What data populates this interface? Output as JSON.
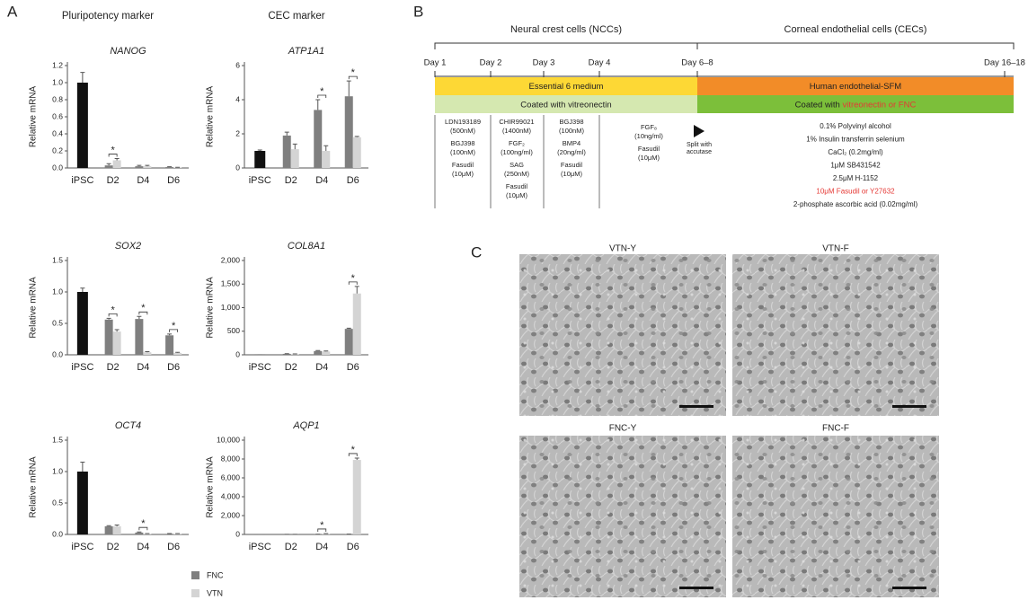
{
  "panel_labels": {
    "a": "A",
    "b": "B",
    "c": "C"
  },
  "column_headers": [
    "Pluripotency marker",
    "CEC marker"
  ],
  "legend": [
    {
      "name": "FNC",
      "color": "#7f7f7f"
    },
    {
      "name": "VTN",
      "color": "#d4d4d4"
    }
  ],
  "chart_data": [
    {
      "type": "bar",
      "title": "NANOG",
      "y_label": "Relative mRNA",
      "categories": [
        "iPSC",
        "D2",
        "D4",
        "D6"
      ],
      "reference_color": "#111111",
      "series": [
        {
          "values": [
            1.0,
            0.03,
            0.02,
            0.01
          ],
          "errors": [
            0.12,
            0.02,
            0.01,
            0.005
          ]
        },
        {
          "values": [
            null,
            0.09,
            0.02,
            0.005
          ],
          "errors": [
            null,
            0.02,
            0.01,
            0.003
          ]
        }
      ],
      "ylim": [
        0,
        1.2
      ],
      "yticks": [
        {
          "value": 0,
          "label": "0.0"
        },
        0.2,
        0.4,
        0.6,
        0.8,
        {
          "value": 1,
          "label": "1.0"
        },
        1.2
      ],
      "annotations": [
        {
          "x": "D2",
          "text": "*"
        }
      ]
    },
    {
      "type": "bar",
      "title": "ATP1A1",
      "y_label": "Relative mRNA",
      "categories": [
        "iPSC",
        "D2",
        "D4",
        "D6"
      ],
      "reference_color": "#111111",
      "series": [
        {
          "values": [
            1.0,
            1.9,
            3.4,
            4.2
          ],
          "errors": [
            0.05,
            0.2,
            0.6,
            0.9
          ]
        },
        {
          "values": [
            null,
            1.1,
            1.0,
            1.8
          ],
          "errors": [
            null,
            0.3,
            0.3,
            0.05
          ]
        }
      ],
      "ylim": [
        0,
        6
      ],
      "yticks": [
        0,
        2,
        4,
        6
      ],
      "annotations": [
        {
          "x": "D4",
          "text": "*"
        },
        {
          "x": "D6",
          "text": "*"
        }
      ]
    },
    {
      "type": "bar",
      "title": "SOX2",
      "y_label": "Relative mRNA",
      "categories": [
        "iPSC",
        "D2",
        "D4",
        "D6"
      ],
      "reference_color": "#111111",
      "series": [
        {
          "values": [
            1.0,
            0.56,
            0.57,
            0.31
          ],
          "errors": [
            0.06,
            0.02,
            0.04,
            0.02
          ]
        },
        {
          "values": [
            null,
            0.37,
            0.04,
            0.03
          ],
          "errors": [
            null,
            0.03,
            0.01,
            0.01
          ]
        }
      ],
      "ylim": [
        0,
        1.5
      ],
      "yticks": [
        {
          "value": 0,
          "label": "0.0"
        },
        0.5,
        {
          "value": 1,
          "label": "1.0"
        },
        1.5
      ],
      "annotations": [
        {
          "x": "D2",
          "text": "*"
        },
        {
          "x": "D4",
          "text": "*"
        },
        {
          "x": "D6",
          "text": "*"
        }
      ]
    },
    {
      "type": "bar",
      "title": "COL8A1",
      "y_label": "Relative mRNA",
      "categories": [
        "iPSC",
        "D2",
        "D4",
        "D6"
      ],
      "reference_color": "#111111",
      "series": [
        {
          "values": [
            1,
            20,
            80,
            550
          ],
          "errors": [
            0,
            5,
            10,
            15
          ]
        },
        {
          "values": [
            null,
            15,
            70,
            1300
          ],
          "errors": [
            null,
            5,
            10,
            150
          ]
        }
      ],
      "ylim": [
        0,
        2000
      ],
      "yticks": [
        0,
        500,
        {
          "value": 1000,
          "label": "1,000"
        },
        {
          "value": 1500,
          "label": "1,500"
        },
        {
          "value": 2000,
          "label": "2,000"
        }
      ],
      "annotations": [
        {
          "x": "D6",
          "text": "*"
        }
      ]
    },
    {
      "type": "bar",
      "title": "OCT4",
      "y_label": "Relative mRNA",
      "categories": [
        "iPSC",
        "D2",
        "D4",
        "D6"
      ],
      "reference_color": "#111111",
      "series": [
        {
          "values": [
            1.0,
            0.13,
            0.03,
            0.01
          ],
          "errors": [
            0.15,
            0.01,
            0.01,
            0.005
          ]
        },
        {
          "values": [
            null,
            0.13,
            0.01,
            0.01
          ],
          "errors": [
            null,
            0.02,
            0.005,
            0.005
          ]
        }
      ],
      "ylim": [
        0,
        1.5
      ],
      "yticks": [
        {
          "value": 0,
          "label": "0.0"
        },
        0.5,
        {
          "value": 1,
          "label": "1.0"
        },
        1.5
      ],
      "annotations": [
        {
          "x": "D4",
          "text": "*"
        }
      ]
    },
    {
      "type": "bar",
      "title": "AQP1",
      "y_label": "Relative mRNA",
      "categories": [
        "iPSC",
        "D2",
        "D4",
        "D6"
      ],
      "reference_color": "#111111",
      "series": [
        {
          "values": [
            1,
            5,
            20,
            30
          ],
          "errors": [
            0,
            2,
            5,
            5
          ]
        },
        {
          "values": [
            null,
            5,
            80,
            7900
          ],
          "errors": [
            null,
            2,
            20,
            200
          ]
        }
      ],
      "ylim": [
        0,
        10000
      ],
      "yticks": [
        0,
        {
          "value": 2000,
          "label": "2,000"
        },
        {
          "value": 4000,
          "label": "4,000"
        },
        {
          "value": 6000,
          "label": "6,000"
        },
        {
          "value": 8000,
          "label": "8,000"
        },
        {
          "value": 10000,
          "label": "10,000"
        }
      ],
      "annotations": [
        {
          "x": "D4",
          "text": "*"
        },
        {
          "x": "D6",
          "text": "*"
        }
      ]
    }
  ],
  "timeline": {
    "phases": [
      "Neural crest cells (NCCs)",
      "Corneal endothelial cells (CECs)"
    ],
    "days": [
      "Day 1",
      "Day 2",
      "Day 3",
      "Day 4",
      "Day 6–8",
      "Day 16–18"
    ],
    "media": [
      {
        "text": "Essential 6 medium",
        "color": "#fdd835"
      },
      {
        "text": "Human endothelial-SFM",
        "color": "#f28c28"
      }
    ],
    "coatings": [
      {
        "text": "Coated with vitreonectin",
        "color": "#d5e8b0"
      },
      {
        "text": "Coated with ",
        "highlight": "vitreonectin or FNC",
        "color": "#7cbf3a",
        "highlight_color": "#e53935"
      }
    ],
    "ncc_reagents": [
      [
        [
          "LDN193189",
          "(500nM)"
        ],
        [
          "BGJ398",
          "(100nM)"
        ],
        [
          "Fasudil",
          "(10μM)"
        ]
      ],
      [
        [
          "CHIR99021",
          "(1400nM)"
        ],
        [
          "FGF₂",
          "(100ng/ml)"
        ],
        [
          "SAG",
          "(250nM)"
        ],
        [
          "Fasudil",
          "(10μM)"
        ]
      ],
      [
        [
          "BGJ398",
          "(100nM)"
        ],
        [
          "BMP4",
          "(20ng/ml)"
        ],
        [
          "Fasudil",
          "(10μM)"
        ]
      ],
      [
        [
          "FGF₈",
          "(10ng/ml)"
        ],
        [
          "Fasudil",
          "(10μM)"
        ]
      ]
    ],
    "split": [
      "Split with",
      "accutase"
    ],
    "cec_reagents": [
      {
        "text": "0.1% Polyvinyl alcohol",
        "color": "#222222"
      },
      {
        "text": "1% Insulin transferrin selenium",
        "color": "#222222"
      },
      {
        "text": "CaCl₂ (0.2mg/ml)",
        "color": "#222222"
      },
      {
        "text": "1μM SB431542",
        "color": "#222222"
      },
      {
        "text": "2.5μM H-1152",
        "color": "#222222"
      },
      {
        "text": "10μM Fasudil or Y27632",
        "color": "#e53935"
      },
      {
        "text": "2-phosphate ascorbic acid (0.02mg/ml)",
        "color": "#222222"
      }
    ]
  },
  "images": [
    {
      "label": "VTN-Y"
    },
    {
      "label": "VTN-F"
    },
    {
      "label": "FNC-Y"
    },
    {
      "label": "FNC-F"
    }
  ]
}
